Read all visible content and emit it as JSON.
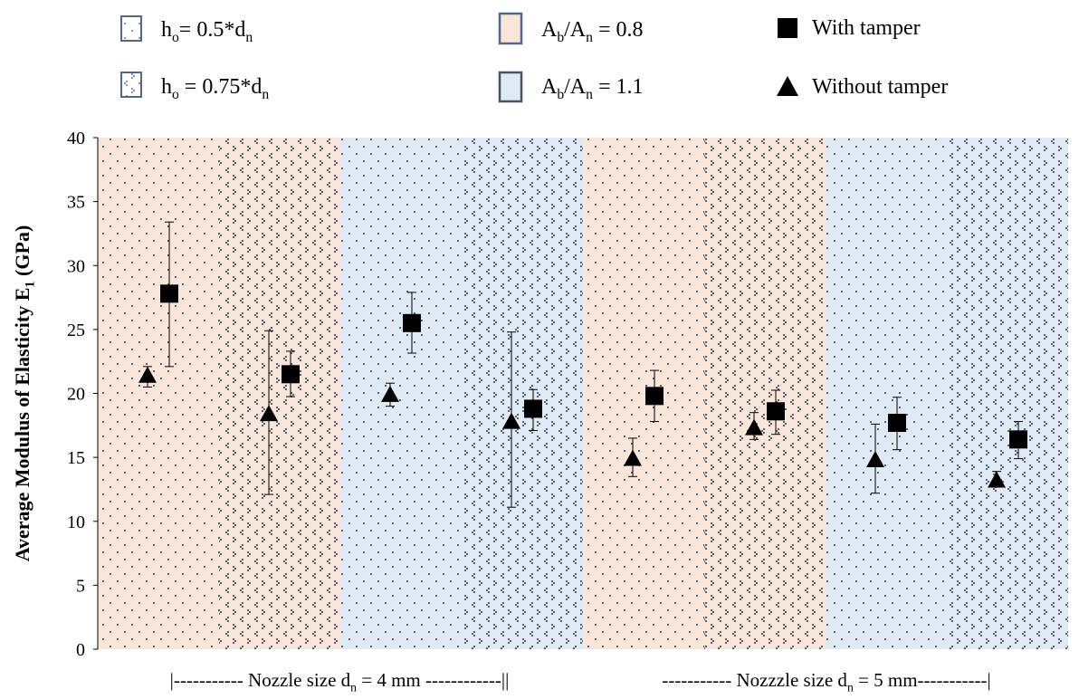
{
  "chart_data": {
    "type": "scatter",
    "title": "",
    "ylabel": "Average Modulus of Elasticity E",
    "ylabel_sub": "1",
    "ylabel_unit": " (GPa)",
    "ylim": [
      0,
      40
    ],
    "yticks": [
      0,
      5,
      10,
      15,
      20,
      25,
      30,
      35,
      40
    ],
    "grid": false,
    "legend_placement": "top",
    "groups": [
      {
        "label_pre": "|----------- Nozzle size d",
        "label_sub": "n",
        "label_post": " = 4 mm ------------||"
      },
      {
        "label_pre": "----------- Nozzzle size d",
        "label_sub": "n",
        "label_post": " = 5 mm-----------|"
      }
    ],
    "bands": [
      {
        "ratio": "0.8",
        "ho": "0.5"
      },
      {
        "ratio": "0.8",
        "ho": "0.75"
      },
      {
        "ratio": "1.1",
        "ho": "0.5"
      },
      {
        "ratio": "1.1",
        "ho": "0.75"
      },
      {
        "ratio": "0.8",
        "ho": "0.5"
      },
      {
        "ratio": "0.8",
        "ho": "0.75"
      },
      {
        "ratio": "1.1",
        "ho": "0.5"
      },
      {
        "ratio": "1.1",
        "ho": "0.75"
      }
    ],
    "series": [
      {
        "name": "Without tamper",
        "marker": "triangle",
        "values": [
          21.4,
          18.4,
          19.9,
          17.8,
          14.9,
          17.3,
          14.8,
          13.2
        ],
        "err_high": [
          22.1,
          24.9,
          20.8,
          24.8,
          16.5,
          18.5,
          17.6,
          13.9
        ],
        "err_low": [
          20.5,
          12.1,
          19.0,
          11.1,
          13.5,
          16.4,
          12.2,
          12.7
        ]
      },
      {
        "name": "With tamper",
        "marker": "square",
        "values": [
          27.8,
          21.5,
          25.5,
          18.8,
          19.8,
          18.6,
          17.7,
          16.4
        ],
        "err_high": [
          33.4,
          23.3,
          27.9,
          20.3,
          21.8,
          20.25,
          19.7,
          17.8
        ],
        "err_low": [
          22.1,
          19.75,
          23.15,
          17.1,
          17.8,
          16.8,
          15.6,
          14.9
        ]
      }
    ],
    "legend": {
      "ho1": {
        "pre": "h",
        "sub": "o",
        "post": "= 0.5*d",
        "sub2": "n"
      },
      "ho2": {
        "pre": "h",
        "sub": "o",
        "post": " = 0.75*d",
        "sub2": "n"
      },
      "r1": {
        "a": "A",
        "sa": "b",
        "b": "/A",
        "sb": "n",
        "post": " = 0.8"
      },
      "r2": {
        "a": "A",
        "sa": "b",
        "b": "/A",
        "sb": "n",
        "post": "  = 1.1"
      },
      "with": "With tamper",
      "without": "Without tamper"
    },
    "colors": {
      "peach": "#fae6d8",
      "blue": "#e0eaf4",
      "dot": "#44506a",
      "border": "#4f6a8f"
    }
  }
}
